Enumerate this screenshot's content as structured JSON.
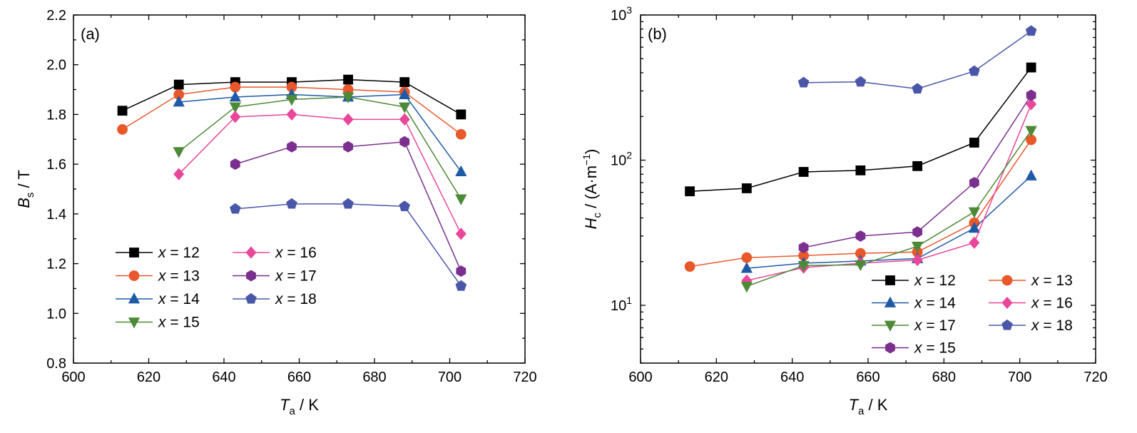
{
  "chart_data": [
    {
      "panel": "(a)",
      "type": "line",
      "xlabel": "T",
      "xlabel_sub": "a",
      "xlabel_unit": " / K",
      "ylabel": "B",
      "ylabel_sub": "s",
      "ylabel_unit": " / T",
      "xlim": [
        600,
        720
      ],
      "ylim": [
        0.8,
        2.2
      ],
      "xticks": [
        600,
        620,
        640,
        660,
        680,
        700,
        720
      ],
      "yticks": [
        0.8,
        1.0,
        1.2,
        1.4,
        1.6,
        1.8,
        2.0,
        2.2
      ],
      "xtick_labels": [
        "600",
        "620",
        "640",
        "660",
        "680",
        "700",
        "720"
      ],
      "ytick_labels": [
        "0.8",
        "1.0",
        "1.2",
        "1.4",
        "1.6",
        "1.8",
        "2.0",
        "2.2"
      ],
      "yscale": "linear",
      "grid": false,
      "legend_columns": 2,
      "legend_placement": "bottom-left",
      "series": [
        {
          "name": "x = 12",
          "var": "x",
          "rest": " = 12",
          "color": "#000000",
          "marker": "square",
          "x": [
            613,
            628,
            643,
            658,
            673,
            688,
            703
          ],
          "y": [
            1.815,
            1.92,
            1.93,
            1.93,
            1.94,
            1.93,
            1.8
          ]
        },
        {
          "name": "x = 13",
          "var": "x",
          "rest": " = 13",
          "color": "#e8582a",
          "marker": "circle",
          "x": [
            613,
            628,
            643,
            658,
            673,
            688,
            703
          ],
          "y": [
            1.74,
            1.88,
            1.91,
            1.91,
            1.9,
            1.89,
            1.72
          ]
        },
        {
          "name": "x = 14",
          "var": "x",
          "rest": " = 14",
          "color": "#1f5aa6",
          "marker": "triangle-up",
          "x": [
            628,
            643,
            658,
            673,
            688,
            703
          ],
          "y": [
            1.85,
            1.87,
            1.88,
            1.87,
            1.88,
            1.57
          ]
        },
        {
          "name": "x = 15",
          "var": "x",
          "rest": " = 15",
          "color": "#4d8a37",
          "marker": "triangle-down",
          "x": [
            628,
            643,
            658,
            673,
            688,
            703
          ],
          "y": [
            1.65,
            1.83,
            1.86,
            1.87,
            1.83,
            1.46
          ]
        },
        {
          "name": "x = 16",
          "var": "x",
          "rest": " = 16",
          "color": "#e8479a",
          "marker": "diamond",
          "x": [
            628,
            643,
            658,
            673,
            688,
            703
          ],
          "y": [
            1.56,
            1.79,
            1.8,
            1.78,
            1.78,
            1.32
          ]
        },
        {
          "name": "x = 17",
          "var": "x",
          "rest": " = 17",
          "color": "#7b2f8e",
          "marker": "hexagon",
          "x": [
            643,
            658,
            673,
            688,
            703
          ],
          "y": [
            1.6,
            1.67,
            1.67,
            1.69,
            1.17
          ]
        },
        {
          "name": "x = 18",
          "var": "x",
          "rest": " = 18",
          "color": "#4a57a8",
          "marker": "pentagon",
          "x": [
            643,
            658,
            673,
            688,
            703
          ],
          "y": [
            1.42,
            1.44,
            1.44,
            1.43,
            1.11
          ]
        }
      ]
    },
    {
      "panel": "(b)",
      "type": "line",
      "xlabel": "T",
      "xlabel_sub": "a",
      "xlabel_unit": " / K",
      "ylabel": "H",
      "ylabel_sub": "c",
      "ylabel_unit": " / (A·m",
      "ylabel_sup": "−1",
      "ylabel_close": ")",
      "xlim": [
        600,
        720
      ],
      "ylim": [
        4,
        1000
      ],
      "xticks": [
        600,
        620,
        640,
        660,
        680,
        700,
        720
      ],
      "xtick_labels": [
        "600",
        "620",
        "640",
        "660",
        "680",
        "700",
        "720"
      ],
      "yscale": "log",
      "yticks_major": [
        10,
        100,
        1000
      ],
      "ytick_labels": [
        {
          "base": "10",
          "exp": "1"
        },
        {
          "base": "10",
          "exp": "2"
        },
        {
          "base": "10",
          "exp": "3"
        }
      ],
      "grid": false,
      "legend_columns": 2,
      "legend_placement": "bottom-right",
      "series": [
        {
          "name": "x = 12",
          "var": "x",
          "rest": " = 12",
          "color": "#000000",
          "marker": "square",
          "x": [
            613,
            628,
            643,
            658,
            673,
            688,
            703
          ],
          "y": [
            61,
            64,
            83,
            85,
            91,
            132,
            435
          ]
        },
        {
          "name": "x = 13",
          "var": "x",
          "rest": " = 13",
          "color": "#e8582a",
          "marker": "circle",
          "x": [
            613,
            628,
            643,
            658,
            673,
            688,
            703
          ],
          "y": [
            18.5,
            21.3,
            22,
            22.8,
            23.3,
            37,
            138
          ]
        },
        {
          "name": "x = 14",
          "var": "x",
          "rest": " = 14",
          "color": "#1f5aa6",
          "marker": "triangle-up",
          "x": [
            628,
            643,
            658,
            673,
            688,
            703
          ],
          "y": [
            18,
            19.5,
            20.2,
            21,
            34,
            78
          ]
        },
        {
          "name": "x = 16",
          "var": "x",
          "rest": " = 16",
          "color": "#e8479a",
          "marker": "diamond",
          "x": [
            628,
            643,
            658,
            673,
            688,
            703
          ],
          "y": [
            14.8,
            18.2,
            19.5,
            20.5,
            27,
            243
          ]
        },
        {
          "name": "x = 17",
          "var": "x",
          "rest": " = 17",
          "color": "#4d8a37",
          "marker": "triangle-down",
          "x": [
            628,
            643,
            658,
            673,
            688,
            703
          ],
          "y": [
            13.5,
            18.8,
            19,
            25.5,
            44,
            160
          ]
        },
        {
          "name": "x = 18",
          "var": "x",
          "rest": " = 18",
          "color": "#4a57a8",
          "marker": "pentagon",
          "x": [
            643,
            658,
            673,
            688,
            703
          ],
          "y": [
            342,
            346,
            310,
            410,
            775
          ]
        },
        {
          "name": "x = 15",
          "var": "x",
          "rest": " = 15",
          "color": "#7b2f8e",
          "marker": "hexagon",
          "x": [
            643,
            658,
            673,
            688,
            703
          ],
          "y": [
            25,
            30,
            32,
            70,
            280
          ]
        }
      ]
    }
  ]
}
